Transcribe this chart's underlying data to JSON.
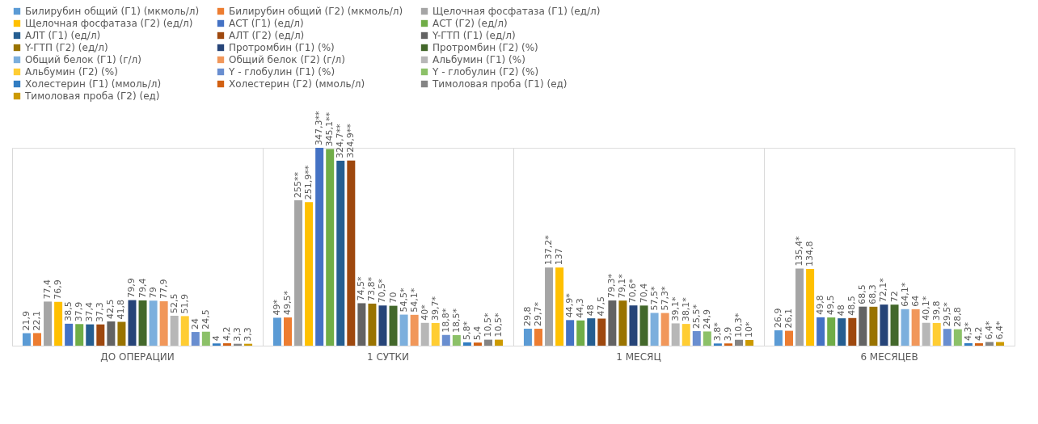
{
  "chart_data": {
    "type": "bar",
    "categories": [
      "ДО ОПЕРАЦИИ",
      "1 СУТКИ",
      "1 МЕСЯЦ",
      "6 МЕСЯЦЕВ"
    ],
    "legend": "top",
    "series": [
      {
        "name": "Билирубин общий (Г1) (мкмоль/л)",
        "color": "#5b9bd5",
        "values": [
          21.9,
          49,
          29.8,
          26.9
        ],
        "value_labels": [
          "21,9",
          "49*",
          "29,8",
          "26,9"
        ]
      },
      {
        "name": "Билирубин общий (Г2) (мкмоль/л)",
        "color": "#ed7d31",
        "values": [
          22.1,
          49.5,
          29.7,
          26.1
        ],
        "value_labels": [
          "22,1",
          "49,5*",
          "29,7*",
          "26,1"
        ]
      },
      {
        "name": "Щелочная фосфатаза (Г1) (ед/л)",
        "color": "#a5a5a5",
        "values": [
          77.4,
          255,
          137.2,
          135.4
        ],
        "value_labels": [
          "77,4",
          "255**",
          "137,2*",
          "135,4*"
        ]
      },
      {
        "name": "Щелочная фосфатаза (Г2) (ед/л)",
        "color": "#ffc000",
        "values": [
          76.9,
          251.9,
          137,
          134.8
        ],
        "value_labels": [
          "76,9",
          "251,9**",
          "137",
          "134,8"
        ]
      },
      {
        "name": "АСТ (Г1) (ед/л)",
        "color": "#4472c4",
        "values": [
          38.5,
          347.3,
          44.9,
          49.8
        ],
        "value_labels": [
          "38,5",
          "347,3**",
          "44,9*",
          "49,8"
        ]
      },
      {
        "name": "АСТ (Г2) (ед/л)",
        "color": "#70ad47",
        "values": [
          37.9,
          345.1,
          44.3,
          49.5
        ],
        "value_labels": [
          "37,9",
          "345,1**",
          "44,3",
          "49,5"
        ]
      },
      {
        "name": "АЛТ (Г1) (ед/л)",
        "color": "#255e91",
        "values": [
          37.4,
          324.7,
          48,
          48
        ],
        "value_labels": [
          "37,4",
          "324,7**",
          "48",
          "48"
        ]
      },
      {
        "name": "АЛТ (Г2) (ед/л)",
        "color": "#9e480e",
        "values": [
          37.3,
          324.9,
          47.5,
          48.5
        ],
        "value_labels": [
          "37,3",
          "324,9**",
          "47,5",
          "48,5"
        ]
      },
      {
        "name": "Y-ГТП (Г1) (ед/л)",
        "color": "#636363",
        "values": [
          42.5,
          74.5,
          79.3,
          68.5
        ],
        "value_labels": [
          "42,5",
          "74,5*",
          "79,3*",
          "68,5"
        ]
      },
      {
        "name": "Y-ГТП (Г2) (ед/л)",
        "color": "#997300",
        "values": [
          41.8,
          73.8,
          79.1,
          68.3
        ],
        "value_labels": [
          "41,8",
          "73,8*",
          "79,1*",
          "68,3"
        ]
      },
      {
        "name": "Протромбин (Г1) (%)",
        "color": "#264478",
        "values": [
          79.9,
          70.5,
          70.6,
          72.1
        ],
        "value_labels": [
          "79,9",
          "70,5*",
          "70,6*",
          "72,1*"
        ]
      },
      {
        "name": "Протромбин (Г2) (%)",
        "color": "#43682b",
        "values": [
          79.4,
          70,
          70.4,
          72
        ],
        "value_labels": [
          "79,4",
          "70",
          "70,4",
          "72"
        ]
      },
      {
        "name": "Общий белок (Г1)  (г/л)",
        "color": "#7cafdd",
        "values": [
          79,
          54.5,
          57.5,
          64.1
        ],
        "value_labels": [
          "79",
          "54,5*",
          "57,5*",
          "64,1*"
        ]
      },
      {
        "name": "Общий белок (Г2)  (г/л)",
        "color": "#f1975a",
        "values": [
          77.9,
          54.1,
          57.3,
          64
        ],
        "value_labels": [
          "77,9",
          "54,1*",
          "57,3*",
          "64"
        ]
      },
      {
        "name": "Альбумин (Г1)  (%)",
        "color": "#b7b7b7",
        "values": [
          52.5,
          40,
          39.1,
          40.1
        ],
        "value_labels": [
          "52,5",
          "40*",
          "39,1*",
          "40,1*"
        ]
      },
      {
        "name": "Альбумин (Г2)  (%)",
        "color": "#ffcd33",
        "values": [
          51.9,
          39.7,
          38.1,
          39.8
        ],
        "value_labels": [
          "51,9",
          "39,7*",
          "38,1*",
          "39,8"
        ]
      },
      {
        "name": "Y - глобулин (Г1)  (%)",
        "color": "#698ed0",
        "values": [
          24,
          18.8,
          25.5,
          29.5
        ],
        "value_labels": [
          "24",
          "18,8*",
          "25,5*",
          "29,5*"
        ]
      },
      {
        "name": "Y - глобулин (Г2)  (%)",
        "color": "#8cc168",
        "values": [
          24.5,
          18.5,
          24.9,
          28.8
        ],
        "value_labels": [
          "24,5",
          "18,5*",
          "24,9",
          "28,8"
        ]
      },
      {
        "name": "Холестерин (Г1) (ммоль/л)",
        "color": "#327dc2",
        "values": [
          4,
          5.8,
          3.8,
          4.3
        ],
        "value_labels": [
          "4",
          "5,8*",
          "3,8*",
          "4,3*"
        ]
      },
      {
        "name": "Холестерин (Г2) (ммоль/л)",
        "color": "#d26012",
        "values": [
          4.2,
          5.4,
          3.9,
          4.2
        ],
        "value_labels": [
          "4,2",
          "5,4",
          "3,9",
          "4,2"
        ]
      },
      {
        "name": "Тимоловая проба (Г1)  (ед)",
        "color": "#848484",
        "values": [
          3.3,
          10.5,
          10.3,
          6.4
        ],
        "value_labels": [
          "3,3",
          "10,5*",
          "10,3*",
          "6,4*"
        ]
      },
      {
        "name": "Тимоловая проба (Г2)  (ед)",
        "color": "#cc9a00",
        "values": [
          3.3,
          10.5,
          10,
          6.4
        ],
        "value_labels": [
          "3,3",
          "10,5*",
          "10*",
          "6,4*"
        ]
      }
    ]
  }
}
